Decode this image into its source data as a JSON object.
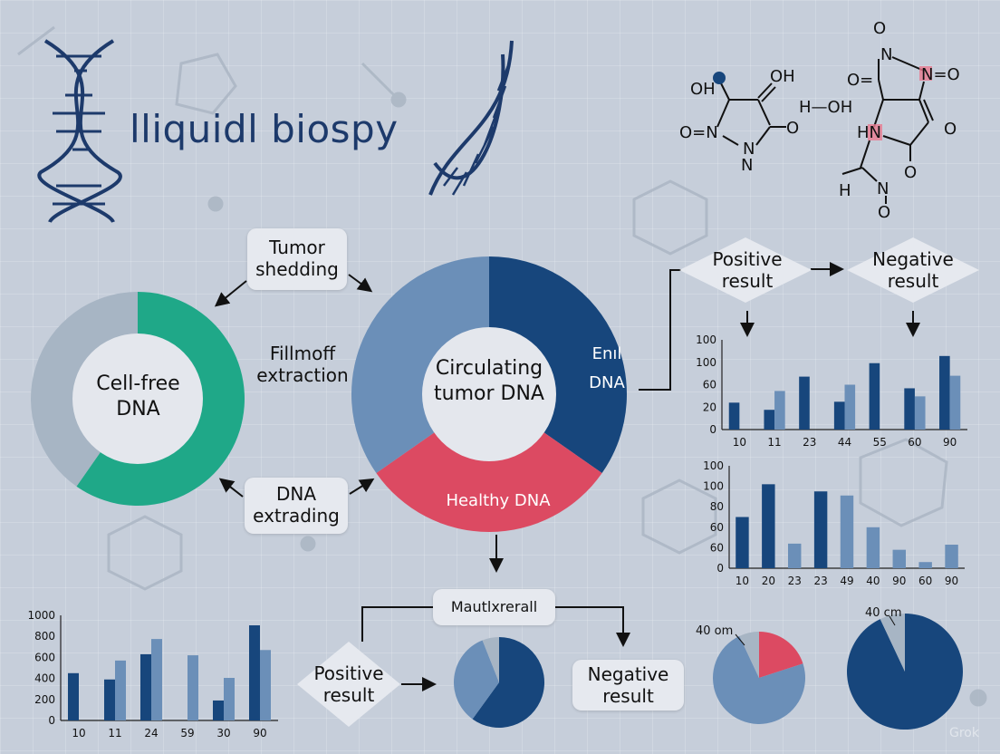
{
  "title": "lliquidl biospy",
  "colors": {
    "dark_blue": "#17467c",
    "light_blue": "#6b8fb8",
    "grey": "#a7b5c4",
    "green": "#1fa888",
    "red": "#dc4a62",
    "background": "#c6ceda"
  },
  "labels": {
    "tumor_shedding": "Tumor shedding",
    "fillmoff_extraction": "Fillmoff extraction",
    "dna_extrading": "DNA extrading",
    "cell_free_dna": "Cell-free DNA",
    "circulating_tumor_dna": "Circulating tumor DNA",
    "enl_dna": "Enıl DNA",
    "healthy_dna": "Healthy DNA",
    "positive_result_top": "Positive result",
    "negative_result_top": "Negative result",
    "mautlxrerall": "Mautlxrerall",
    "positive_result_bottom": "Positive result",
    "negative_result_bottom": "Negative result",
    "pie_label_1": "40 om",
    "pie_label_2": "40 cm",
    "watermark": "Grok"
  },
  "molecules": {
    "left": [
      "OH",
      "OH",
      "O=N",
      "N",
      "N",
      "O"
    ],
    "middle": "H—OH",
    "right": [
      "O",
      "N",
      "N=O",
      "O=",
      "HN",
      "O",
      "O",
      "N",
      "O",
      "H"
    ]
  },
  "donuts": {
    "cell_free": [
      {
        "name": "green",
        "fraction": 0.597,
        "color": "#1fa888"
      },
      {
        "name": "grey",
        "fraction": 0.403,
        "color": "#a7b5c4"
      }
    ],
    "circulating": [
      {
        "name": "Enıl DNA",
        "fraction": 0.347,
        "color": "#17467c"
      },
      {
        "name": "Healthy DNA",
        "fraction": 0.306,
        "color": "#dc4a62"
      },
      {
        "name": "other",
        "fraction": 0.347,
        "color": "#6b8fb8"
      }
    ]
  },
  "chart_data": [
    {
      "type": "bar",
      "yticks": [
        "0",
        "20",
        "60",
        "100",
        "100"
      ],
      "categories": [
        "10",
        "11",
        "23",
        "44",
        "55",
        "60",
        "90"
      ],
      "series": [
        {
          "values": [
            30,
            22,
            59,
            31,
            74,
            46,
            82
          ]
        },
        {
          "values": [
            null,
            43,
            null,
            50,
            null,
            37,
            60
          ]
        }
      ],
      "ylim": [
        0,
        100
      ]
    },
    {
      "type": "bar",
      "yticks": [
        "0",
        "60",
        "60",
        "80",
        "100",
        "100"
      ],
      "categories": [
        "10",
        "20",
        "23",
        "23",
        "49",
        "40",
        "90",
        "60",
        "90"
      ],
      "values": [
        50,
        82,
        24,
        75,
        71,
        40,
        18,
        6,
        23
      ],
      "bar_colors": [
        "dark",
        "dark",
        "light",
        "dark",
        "light",
        "light",
        "light",
        "light",
        "light"
      ],
      "ylim": [
        0,
        100
      ]
    },
    {
      "type": "bar",
      "yticks": [
        "0",
        "200",
        "400",
        "600",
        "800",
        "1000"
      ],
      "categories": [
        "10",
        "11",
        "24",
        "59",
        "30",
        "90"
      ],
      "series": [
        {
          "values": [
            450,
            390,
            630,
            null,
            190,
            905
          ]
        },
        {
          "values": [
            null,
            570,
            775,
            620,
            405,
            670
          ]
        }
      ],
      "ylim": [
        0,
        1000
      ]
    },
    {
      "type": "pie",
      "slices": [
        {
          "fraction": 0.6,
          "color": "dark"
        },
        {
          "fraction": 0.34,
          "color": "light"
        },
        {
          "fraction": 0.06,
          "color": "grey"
        }
      ]
    },
    {
      "type": "pie",
      "label": "40 om",
      "slices": [
        {
          "fraction": 0.2,
          "color": "red"
        },
        {
          "fraction": 0.73,
          "color": "light"
        },
        {
          "fraction": 0.07,
          "color": "grey"
        }
      ]
    },
    {
      "type": "pie",
      "label": "40 cm",
      "slices": [
        {
          "fraction": 0.93,
          "color": "dark"
        },
        {
          "fraction": 0.07,
          "color": "grey"
        }
      ]
    }
  ]
}
